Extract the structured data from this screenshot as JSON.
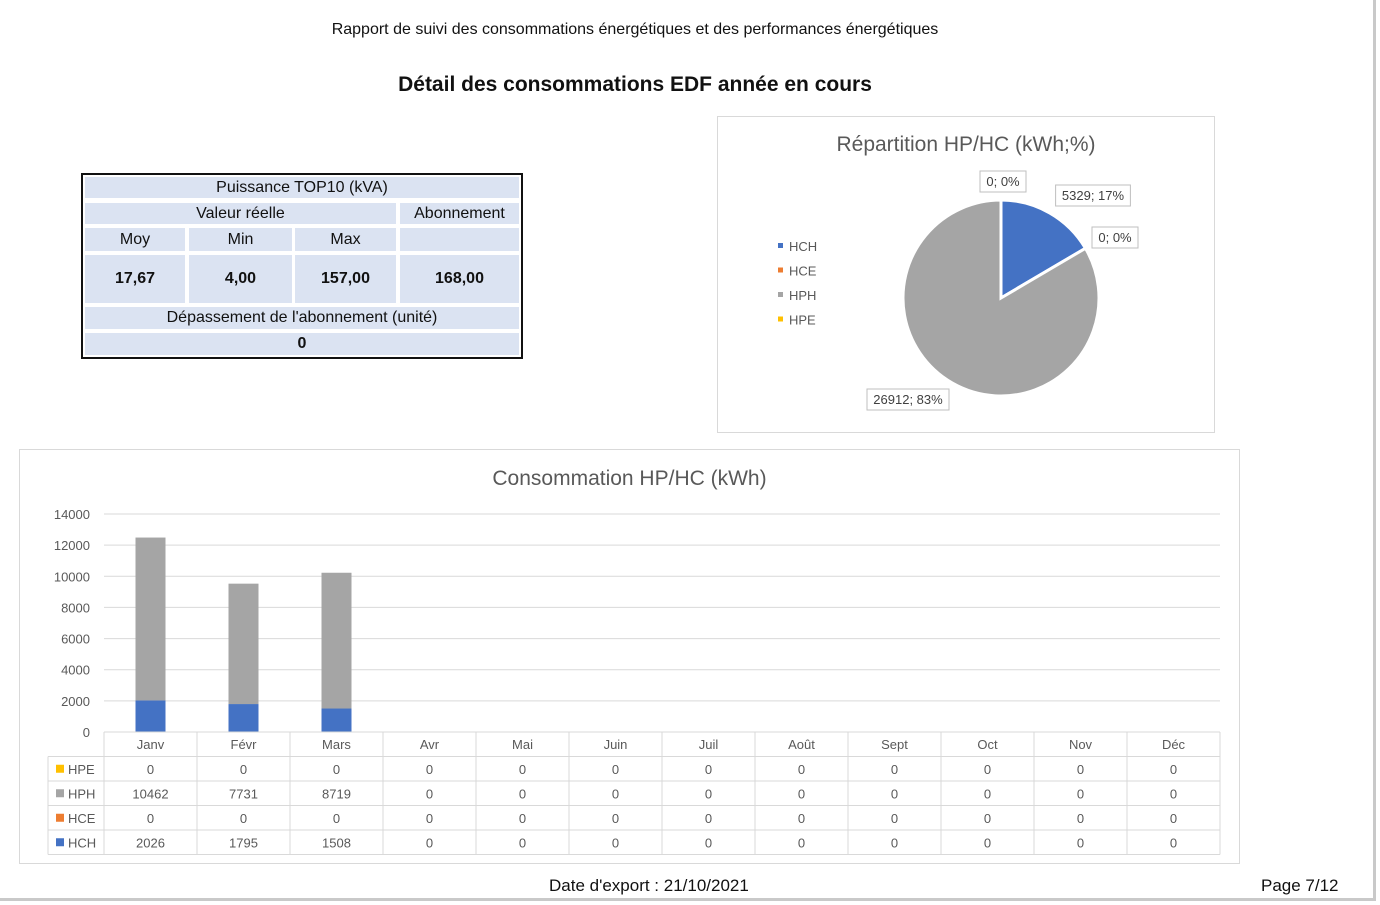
{
  "header": {
    "report_title": "Rapport de suivi des consommations énergétiques et des performances énergétiques",
    "section_title": "Détail des consommations EDF année en cours"
  },
  "power_table": {
    "title": "Puissance TOP10 (kVA)",
    "real_value_label": "Valeur réelle",
    "subscription_label": "Abonnement",
    "col_moy": "Moy",
    "col_min": "Min",
    "col_max": "Max",
    "moy": "17,67",
    "min": "4,00",
    "max": "157,00",
    "subscription": "168,00",
    "overrun_label": "Dépassement de l'abonnement (unité)",
    "overrun_value": "0"
  },
  "colors": {
    "HCH": "#4472c4",
    "HCE": "#ed7d31",
    "HPH": "#a5a5a5",
    "HPE": "#ffc000"
  },
  "chart_data": [
    {
      "type": "pie",
      "title": "Répartition HP/HC (kWh;%)",
      "legend_position": "left",
      "slices": [
        {
          "name": "HCH",
          "value": 5329,
          "label": "5329; 17%"
        },
        {
          "name": "HCE",
          "value": 0,
          "label": "0; 0%"
        },
        {
          "name": "HPH",
          "value": 26912,
          "label": "26912; 83%"
        },
        {
          "name": "HPE",
          "value": 0,
          "label": "0; 0%"
        }
      ]
    },
    {
      "type": "bar",
      "stacked": true,
      "title": "Consommation HP/HC (kWh)",
      "categories": [
        "Janv",
        "Févr",
        "Mars",
        "Avr",
        "Mai",
        "Juin",
        "Juil",
        "Août",
        "Sept",
        "Oct",
        "Nov",
        "Déc"
      ],
      "ylim": [
        0,
        14000
      ],
      "yticks": [
        0,
        2000,
        4000,
        6000,
        8000,
        10000,
        12000,
        14000
      ],
      "grid": true,
      "data_table": true,
      "table_row_order": [
        "HPE",
        "HPH",
        "HCE",
        "HCH"
      ],
      "series": [
        {
          "name": "HCH",
          "values": [
            2026,
            1795,
            1508,
            0,
            0,
            0,
            0,
            0,
            0,
            0,
            0,
            0
          ]
        },
        {
          "name": "HCE",
          "values": [
            0,
            0,
            0,
            0,
            0,
            0,
            0,
            0,
            0,
            0,
            0,
            0
          ]
        },
        {
          "name": "HPH",
          "values": [
            10462,
            7731,
            8719,
            0,
            0,
            0,
            0,
            0,
            0,
            0,
            0,
            0
          ]
        },
        {
          "name": "HPE",
          "values": [
            0,
            0,
            0,
            0,
            0,
            0,
            0,
            0,
            0,
            0,
            0,
            0
          ]
        }
      ]
    }
  ],
  "footer": {
    "export_date": "Date d'export : 21/10/2021",
    "page": "Page 7/12"
  }
}
